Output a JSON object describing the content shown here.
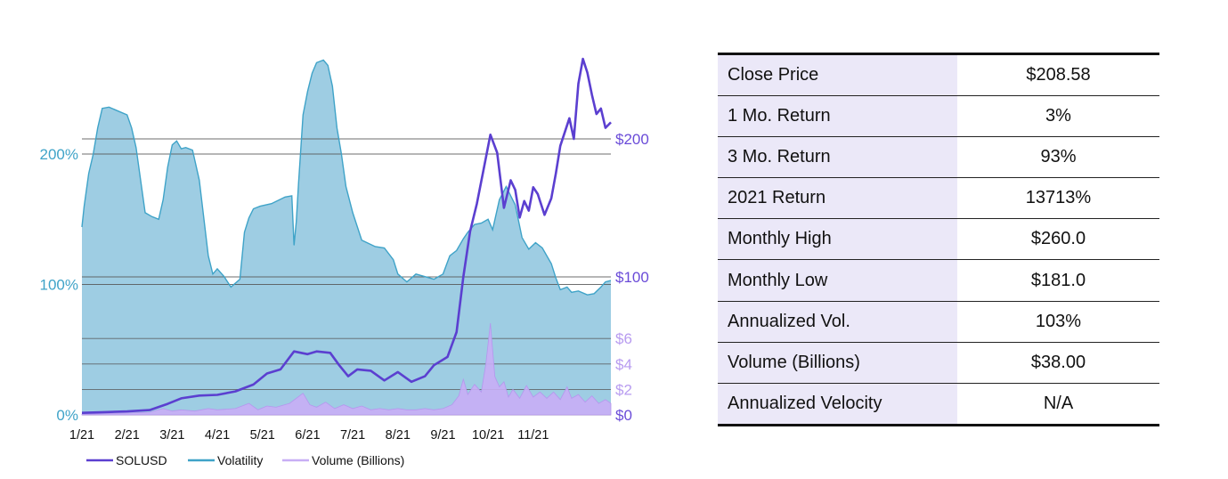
{
  "chart_data": {
    "type": "line",
    "x_labels": [
      "1/21",
      "2/21",
      "3/21",
      "4/21",
      "5/21",
      "6/21",
      "7/21",
      "8/21",
      "9/21",
      "10/21",
      "11/21"
    ],
    "left_axis": {
      "ticks": [
        "0%",
        "100%",
        "200%"
      ],
      "tick_values": [
        0,
        100,
        200
      ],
      "range": [
        0,
        320
      ]
    },
    "right_axis_price": {
      "ticks": [
        "$100",
        "$200"
      ],
      "tick_values": [
        100,
        200
      ]
    },
    "right_axis_volume": {
      "ticks": [
        "$0",
        "$2",
        "$4",
        "$6"
      ],
      "tick_values": [
        0,
        2,
        4,
        6
      ]
    },
    "series": [
      {
        "name": "SOLUSD",
        "color": "#5b3fd0",
        "axis": "price",
        "points": [
          [
            0.0,
            1.5
          ],
          [
            0.5,
            2
          ],
          [
            1.0,
            2.5
          ],
          [
            1.5,
            3.5
          ],
          [
            1.9,
            8
          ],
          [
            2.2,
            12
          ],
          [
            2.6,
            14
          ],
          [
            3.0,
            14.5
          ],
          [
            3.4,
            17
          ],
          [
            3.8,
            22
          ],
          [
            4.1,
            30
          ],
          [
            4.4,
            33
          ],
          [
            4.7,
            46
          ],
          [
            5.0,
            44
          ],
          [
            5.2,
            46
          ],
          [
            5.5,
            45
          ],
          [
            5.7,
            36
          ],
          [
            5.9,
            28
          ],
          [
            6.1,
            33
          ],
          [
            6.4,
            32
          ],
          [
            6.7,
            25
          ],
          [
            7.0,
            31
          ],
          [
            7.3,
            24
          ],
          [
            7.6,
            28
          ],
          [
            7.8,
            36
          ],
          [
            8.1,
            42
          ],
          [
            8.3,
            60
          ],
          [
            8.45,
            100
          ],
          [
            8.6,
            133
          ],
          [
            8.75,
            153
          ],
          [
            8.9,
            178
          ],
          [
            9.05,
            203
          ],
          [
            9.2,
            190
          ],
          [
            9.35,
            150
          ],
          [
            9.5,
            170
          ],
          [
            9.6,
            163
          ],
          [
            9.7,
            143
          ],
          [
            9.8,
            155
          ],
          [
            9.9,
            148
          ],
          [
            10.0,
            165
          ],
          [
            10.1,
            160
          ],
          [
            10.25,
            145
          ],
          [
            10.4,
            157
          ],
          [
            10.5,
            175
          ],
          [
            10.6,
            195
          ],
          [
            10.7,
            205
          ],
          [
            10.8,
            215
          ],
          [
            10.9,
            200
          ],
          [
            11.0,
            240
          ],
          [
            11.1,
            258
          ],
          [
            11.2,
            248
          ],
          [
            11.3,
            232
          ],
          [
            11.4,
            218
          ],
          [
            11.5,
            222
          ],
          [
            11.6,
            208
          ],
          [
            11.72,
            212
          ]
        ]
      },
      {
        "name": "Volatility",
        "color": "#3fa3c8",
        "fill": "#9ecde3",
        "axis": "percent",
        "points": [
          [
            0.0,
            144
          ],
          [
            0.05,
            160
          ],
          [
            0.15,
            185
          ],
          [
            0.25,
            200
          ],
          [
            0.35,
            220
          ],
          [
            0.45,
            235
          ],
          [
            0.6,
            236
          ],
          [
            0.8,
            233
          ],
          [
            1.0,
            230
          ],
          [
            1.1,
            220
          ],
          [
            1.2,
            205
          ],
          [
            1.3,
            180
          ],
          [
            1.4,
            155
          ],
          [
            1.55,
            152
          ],
          [
            1.7,
            150
          ],
          [
            1.8,
            165
          ],
          [
            1.9,
            190
          ],
          [
            2.0,
            207
          ],
          [
            2.1,
            210
          ],
          [
            2.2,
            204
          ],
          [
            2.3,
            205
          ],
          [
            2.45,
            203
          ],
          [
            2.6,
            180
          ],
          [
            2.8,
            122
          ],
          [
            2.9,
            108
          ],
          [
            3.0,
            112
          ],
          [
            3.15,
            106
          ],
          [
            3.3,
            98
          ],
          [
            3.5,
            104
          ],
          [
            3.6,
            140
          ],
          [
            3.7,
            151
          ],
          [
            3.8,
            158
          ],
          [
            3.95,
            160
          ],
          [
            4.2,
            162
          ],
          [
            4.5,
            167
          ],
          [
            4.65,
            168
          ],
          [
            4.7,
            130
          ],
          [
            4.75,
            148
          ],
          [
            4.8,
            178
          ],
          [
            4.9,
            230
          ],
          [
            5.0,
            248
          ],
          [
            5.1,
            262
          ],
          [
            5.2,
            270
          ],
          [
            5.35,
            272
          ],
          [
            5.45,
            268
          ],
          [
            5.55,
            252
          ],
          [
            5.65,
            220
          ],
          [
            5.75,
            200
          ],
          [
            5.85,
            175
          ],
          [
            6.0,
            155
          ],
          [
            6.2,
            134
          ],
          [
            6.5,
            129
          ],
          [
            6.7,
            128
          ],
          [
            6.9,
            119
          ],
          [
            7.0,
            108
          ],
          [
            7.2,
            102
          ],
          [
            7.4,
            108
          ],
          [
            7.6,
            106
          ],
          [
            7.8,
            104
          ],
          [
            8.0,
            108
          ],
          [
            8.15,
            122
          ],
          [
            8.3,
            126
          ],
          [
            8.45,
            135
          ],
          [
            8.55,
            140
          ],
          [
            8.7,
            146
          ],
          [
            8.85,
            147
          ],
          [
            9.0,
            150
          ],
          [
            9.1,
            142
          ],
          [
            9.25,
            165
          ],
          [
            9.4,
            175
          ],
          [
            9.5,
            168
          ],
          [
            9.6,
            161
          ],
          [
            9.75,
            136
          ],
          [
            9.9,
            127
          ],
          [
            10.05,
            132
          ],
          [
            10.2,
            128
          ],
          [
            10.4,
            116
          ],
          [
            10.5,
            105
          ],
          [
            10.6,
            96
          ],
          [
            10.75,
            98
          ],
          [
            10.85,
            94
          ],
          [
            11.0,
            95
          ],
          [
            11.2,
            92
          ],
          [
            11.35,
            93
          ],
          [
            11.5,
            98
          ],
          [
            11.6,
            102
          ],
          [
            11.72,
            103
          ]
        ]
      },
      {
        "name": "Volume (Billions)",
        "color": "#c8aef5",
        "axis": "volume",
        "points": [
          [
            0.0,
            0.05
          ],
          [
            0.5,
            0.1
          ],
          [
            1.0,
            0.15
          ],
          [
            1.5,
            0.2
          ],
          [
            1.8,
            0.5
          ],
          [
            2.0,
            0.3
          ],
          [
            2.2,
            0.4
          ],
          [
            2.5,
            0.3
          ],
          [
            2.8,
            0.5
          ],
          [
            3.0,
            0.4
          ],
          [
            3.4,
            0.5
          ],
          [
            3.7,
            0.9
          ],
          [
            3.9,
            0.4
          ],
          [
            4.1,
            0.7
          ],
          [
            4.3,
            0.6
          ],
          [
            4.6,
            0.9
          ],
          [
            4.9,
            1.7
          ],
          [
            5.05,
            0.8
          ],
          [
            5.2,
            0.6
          ],
          [
            5.4,
            1.0
          ],
          [
            5.6,
            0.5
          ],
          [
            5.8,
            0.8
          ],
          [
            6.0,
            0.5
          ],
          [
            6.2,
            0.7
          ],
          [
            6.4,
            0.4
          ],
          [
            6.6,
            0.5
          ],
          [
            6.8,
            0.4
          ],
          [
            7.0,
            0.5
          ],
          [
            7.2,
            0.4
          ],
          [
            7.4,
            0.4
          ],
          [
            7.6,
            0.5
          ],
          [
            7.8,
            0.4
          ],
          [
            8.0,
            0.5
          ],
          [
            8.2,
            0.8
          ],
          [
            8.35,
            1.5
          ],
          [
            8.45,
            2.8
          ],
          [
            8.55,
            1.6
          ],
          [
            8.7,
            2.4
          ],
          [
            8.85,
            1.8
          ],
          [
            8.95,
            4.0
          ],
          [
            9.05,
            7.2
          ],
          [
            9.15,
            3.0
          ],
          [
            9.25,
            2.2
          ],
          [
            9.35,
            2.6
          ],
          [
            9.45,
            1.4
          ],
          [
            9.55,
            2.0
          ],
          [
            9.7,
            1.3
          ],
          [
            9.85,
            2.3
          ],
          [
            10.0,
            1.4
          ],
          [
            10.15,
            1.8
          ],
          [
            10.3,
            1.3
          ],
          [
            10.45,
            1.8
          ],
          [
            10.6,
            1.2
          ],
          [
            10.75,
            2.2
          ],
          [
            10.85,
            1.3
          ],
          [
            11.0,
            1.6
          ],
          [
            11.15,
            1.0
          ],
          [
            11.3,
            1.5
          ],
          [
            11.45,
            0.9
          ],
          [
            11.6,
            1.2
          ],
          [
            11.72,
            0.9
          ]
        ]
      }
    ]
  },
  "legend": [
    {
      "label": "SOLUSD",
      "color": "#5b3fd0"
    },
    {
      "label": "Volatility",
      "color": "#3fa3c8"
    },
    {
      "label": "Volume (Billions)",
      "color": "#c8aef5"
    }
  ],
  "stats_table": [
    {
      "label": "Close Price",
      "value": "$208.58"
    },
    {
      "label": "1 Mo. Return",
      "value": "3%"
    },
    {
      "label": "3 Mo. Return",
      "value": "93%"
    },
    {
      "label": "2021 Return",
      "value": "13713%"
    },
    {
      "label": "Monthly High",
      "value": "$260.0"
    },
    {
      "label": "Monthly Low",
      "value": "$181.0"
    },
    {
      "label": "Annualized Vol.",
      "value": "103%"
    },
    {
      "label": "Volume (Billions)",
      "value": "$38.00"
    },
    {
      "label": "Annualized Velocity",
      "value": "N/A"
    }
  ]
}
